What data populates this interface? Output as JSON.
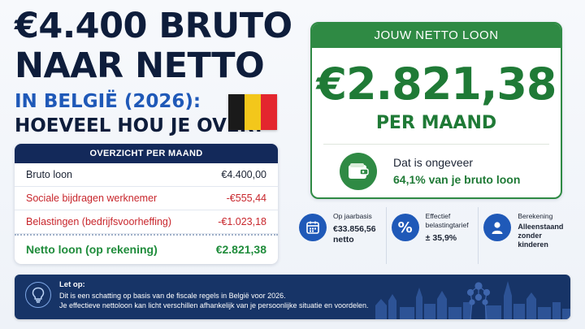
{
  "headline": {
    "line1": "€4.400 BRUTO",
    "line2": "NAAR NETTO",
    "line3": "IN BELGIË (2026):",
    "line4": "HOEVEEL HOU JE OVER?"
  },
  "flag": {
    "colors": [
      "#1a1a1a",
      "#f3c71b",
      "#e3262e"
    ]
  },
  "overview": {
    "header": "OVERZICHT PER MAAND",
    "rows": [
      {
        "label": "Bruto loon",
        "value": "€4.400,00"
      },
      {
        "label": "Sociale bijdragen werknemer",
        "value": "-€555,44"
      },
      {
        "label": "Belastingen (bedrijfsvoorheffing)",
        "value": "-€1.023,18"
      }
    ],
    "total": {
      "label": "Netto loon (op rekening)",
      "value": "€2.821,38"
    }
  },
  "netto_card": {
    "header": "JOUW NETTO LOON",
    "amount": "€2.821,38",
    "period": "PER MAAND",
    "info_line1": "Dat is ongeveer",
    "info_line2": "64,1% van je bruto loon",
    "icon": "wallet-icon"
  },
  "stats": [
    {
      "icon": "calendar-icon",
      "label": "Op jaarbasis",
      "value_line1": "€33.856,56",
      "value_line2": "netto"
    },
    {
      "icon": "percent-icon",
      "label_line1": "Effectief",
      "label_line2": "belastingtarief",
      "value": "± 35,9%"
    },
    {
      "icon": "person-icon",
      "label": "Berekening",
      "value_line1": "Alleenstaand",
      "value_line2": "zonder kinderen"
    }
  ],
  "note": {
    "title": "Let op:",
    "line1": "Dit is een schatting op basis van de fiscale regels in België voor 2026.",
    "line2": "Je effectieve nettoloon kan licht verschillen afhankelijk van je persoonlijke situatie en voordelen.",
    "icon": "lightbulb-icon"
  },
  "colors": {
    "navy": "#13295a",
    "blue": "#1f59b8",
    "green": "#2f8a44",
    "red": "#c8262c"
  }
}
